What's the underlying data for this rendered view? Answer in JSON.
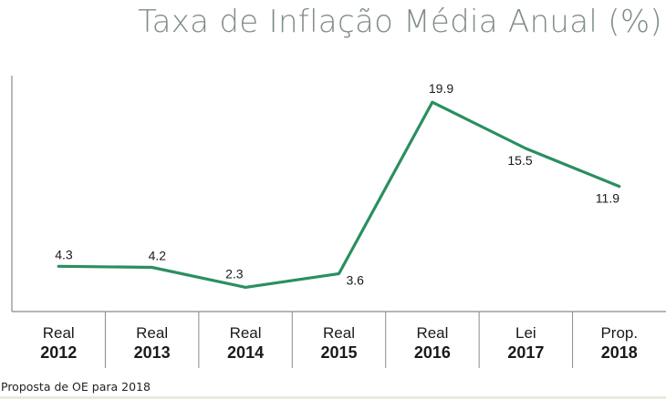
{
  "chart_data": {
    "type": "line",
    "title": "Taxa de Inflação Média Anual (%)",
    "categories": [
      [
        "Real",
        "2012"
      ],
      [
        "Real",
        "2013"
      ],
      [
        "Real",
        "2014"
      ],
      [
        "Real",
        "2015"
      ],
      [
        "Real",
        "2016"
      ],
      [
        "Lei",
        "2017"
      ],
      [
        "Prop.",
        "2018"
      ]
    ],
    "values": [
      4.3,
      4.2,
      2.3,
      3.6,
      19.9,
      15.5,
      11.9
    ],
    "value_labels": [
      "4.3",
      "4.2",
      "2.3",
      "3.6",
      "19.9",
      "15.5",
      "11.9"
    ],
    "ylim": [
      0,
      23
    ],
    "grid": false,
    "series_color": "#2a8f5f",
    "axis_color": "#8a8a8a",
    "title_color": "#7f8d8a"
  },
  "footnote": "Proposta de OE para  2018"
}
